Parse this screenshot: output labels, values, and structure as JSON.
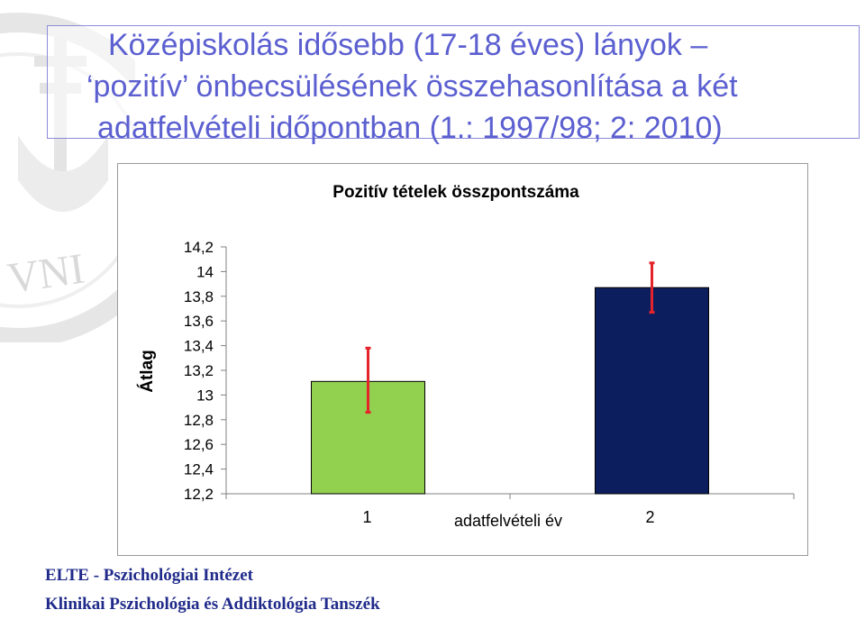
{
  "slide": {
    "title_lines": [
      "Középiskolás idősebb (17-18 éves) lányok –",
      "‘pozitív’ önbecsülésének összehasonlítása a két",
      "adatfelvételi időpontban (1.: 1997/98; 2: 2010)"
    ],
    "footer_lines": [
      "ELTE - Pszichológiai Intézet",
      "Klinikai Pszichológia és Addiktológia Tanszék"
    ],
    "watermark_text": "VNI"
  },
  "chart_data": {
    "type": "bar",
    "title": "Pozitív tételek összpontszáma",
    "xlabel": "adatfelvételi év",
    "ylabel": "Átlag",
    "categories": [
      "1",
      "2"
    ],
    "values": [
      13.11,
      13.87
    ],
    "error_bars": [
      [
        12.86,
        13.38
      ],
      [
        13.67,
        14.07
      ]
    ],
    "bar_colors": [
      "#92d050",
      "#0c1e5e"
    ],
    "error_color": "#e4242a",
    "ylim": [
      12.2,
      14.2
    ],
    "yticks": [
      14.2,
      14,
      13.8,
      13.6,
      13.4,
      13.2,
      13,
      12.8,
      12.6,
      12.4,
      12.2
    ],
    "ytick_labels": [
      "14,2",
      "14",
      "13,8",
      "13,6",
      "13,4",
      "13,2",
      "13",
      "12,8",
      "12,6",
      "12,4",
      "12,2"
    ],
    "grid": false,
    "legend": "none"
  }
}
